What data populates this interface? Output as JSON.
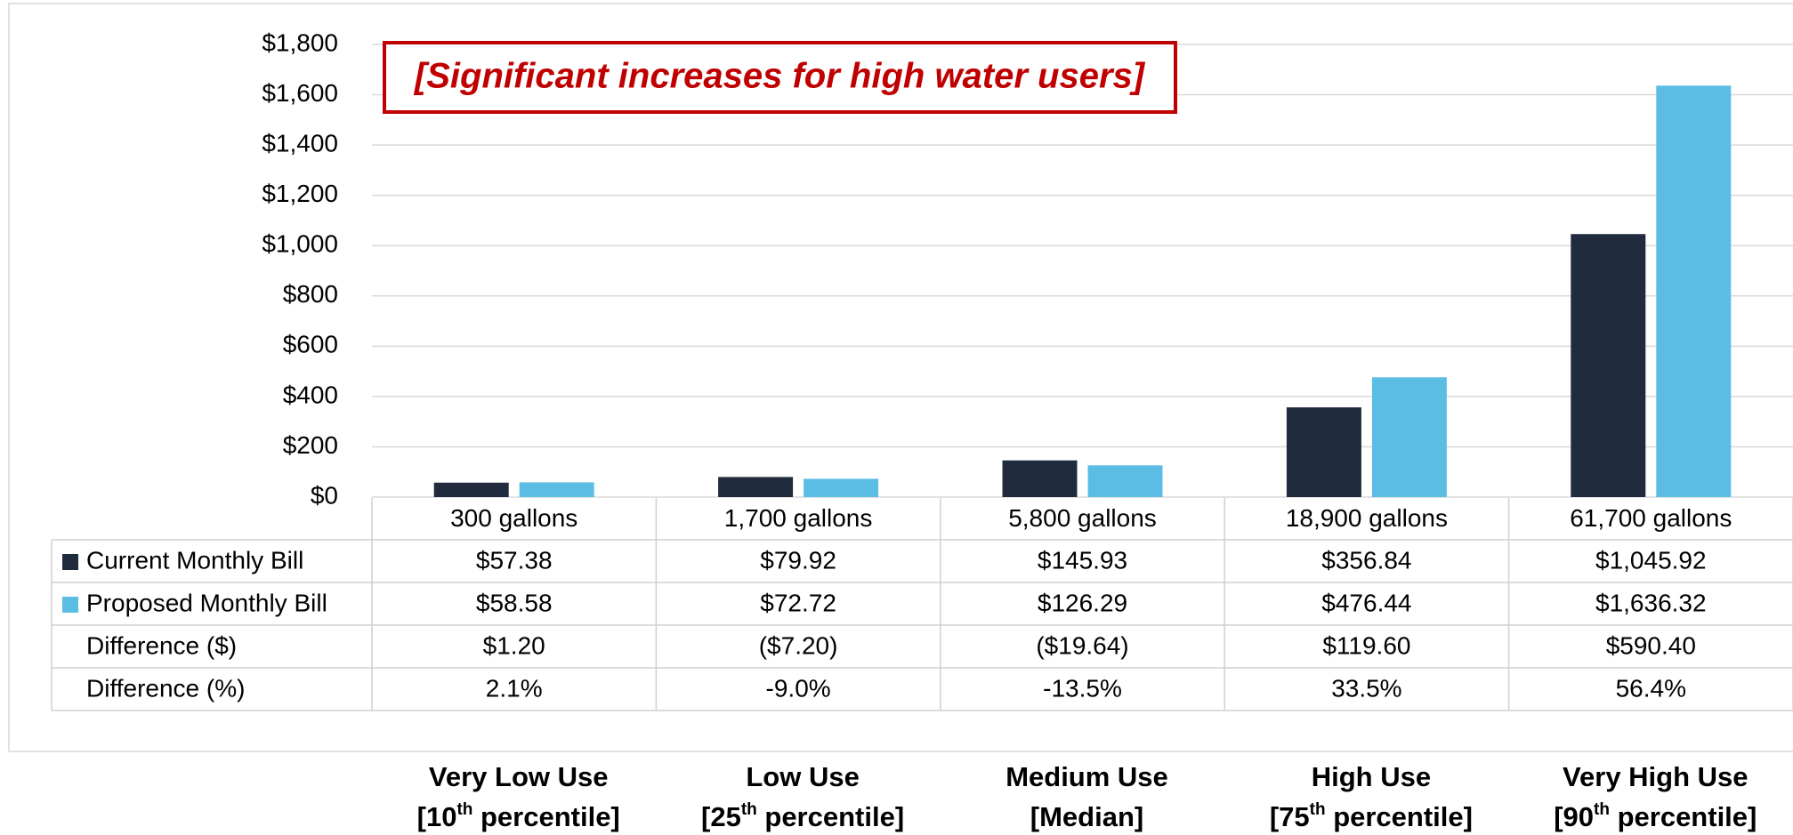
{
  "chart_data": {
    "type": "bar",
    "annotation": "[Significant increases for high water users]",
    "categories": [
      "300 gallons",
      "1,700 gallons",
      "5,800 gallons",
      "18,900 gallons",
      "61,700 gallons"
    ],
    "series": [
      {
        "name": "Current Monthly Bill",
        "color": "#212b3e",
        "values": [
          57.38,
          79.92,
          145.93,
          356.84,
          1045.92
        ],
        "value_labels": [
          "$57.38",
          "$79.92",
          "$145.93",
          "$356.84",
          "$1,045.92"
        ]
      },
      {
        "name": "Proposed Monthly Bill",
        "color": "#5bbde4",
        "values": [
          58.58,
          72.72,
          126.29,
          476.44,
          1636.32
        ],
        "value_labels": [
          "$58.58",
          "$72.72",
          "$126.29",
          "$476.44",
          "$1,636.32"
        ]
      }
    ],
    "table_rows": [
      {
        "name": "Difference ($)",
        "values": [
          "$1.20",
          "($7.20)",
          "($19.64)",
          "$119.60",
          "$590.40"
        ]
      },
      {
        "name": "Difference (%)",
        "values": [
          "2.1%",
          "-9.0%",
          "-13.5%",
          "33.5%",
          "56.4%"
        ]
      }
    ],
    "group_labels": [
      {
        "name": "Very Low Use",
        "pre": "[10",
        "sup": "th",
        "post": " percentile]"
      },
      {
        "name": "Low Use",
        "pre": "[25",
        "sup": "th",
        "post": " percentile]"
      },
      {
        "name": "Medium Use",
        "pre": "[Median]"
      },
      {
        "name": "High Use",
        "pre": "[75",
        "sup": "th",
        "post": " percentile]"
      },
      {
        "name": "Very High Use",
        "pre": "[90",
        "sup": "th",
        "post": " percentile]"
      }
    ],
    "ylim": [
      0,
      1800
    ],
    "yticks": [
      {
        "value": 0,
        "label": "$0"
      },
      {
        "value": 200,
        "label": "$200"
      },
      {
        "value": 400,
        "label": "$400"
      },
      {
        "value": 600,
        "label": "$600"
      },
      {
        "value": 800,
        "label": "$800"
      },
      {
        "value": 1000,
        "label": "$1,000"
      },
      {
        "value": 1200,
        "label": "$1,200"
      },
      {
        "value": 1400,
        "label": "$1,400"
      },
      {
        "value": 1600,
        "label": "$1,600"
      },
      {
        "value": 1800,
        "label": "$1,800"
      }
    ],
    "grid": true
  }
}
